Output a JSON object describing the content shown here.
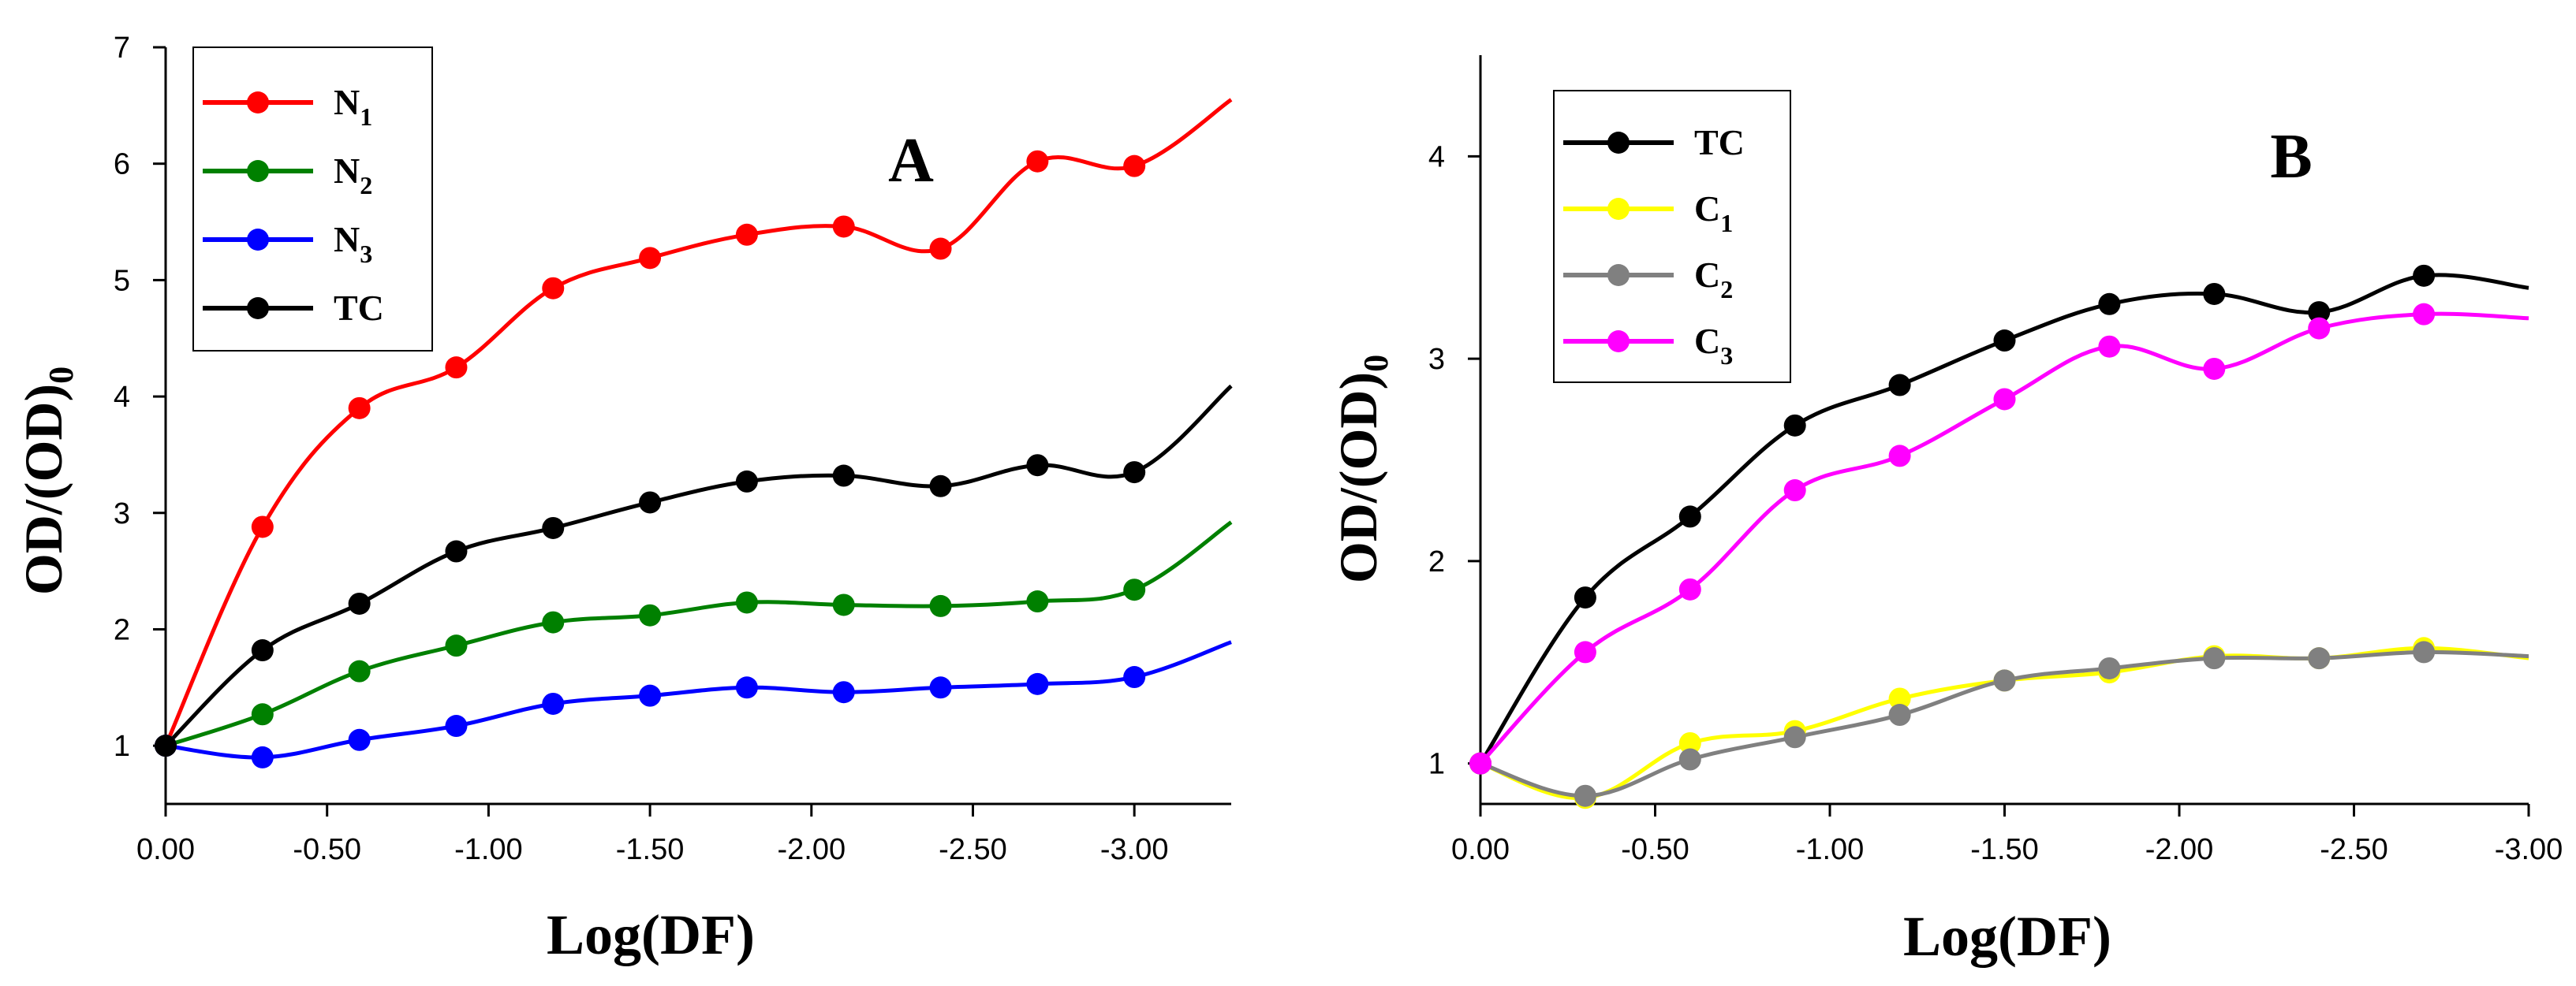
{
  "chart_data": [
    {
      "type": "line",
      "panel": "A",
      "title": "",
      "xlabel": "Log(DF)",
      "ylabel": "OD/(OD)",
      "ylabel_sub": "0",
      "xlim": [
        0,
        -3.3
      ],
      "ylim": [
        0.5,
        7
      ],
      "x_ticks": [
        0,
        -0.5,
        -1,
        -1.5,
        -2,
        -2.5,
        -3
      ],
      "x_tick_labels": [
        "0.00",
        "-0.50",
        "-1.00",
        "-1.50",
        "-2.00",
        "-2.50",
        "-3.00"
      ],
      "y_ticks": [
        1,
        2,
        3,
        4,
        5,
        6,
        7
      ],
      "y_tick_labels": [
        "1",
        "2",
        "3",
        "4",
        "5",
        "6",
        "7"
      ],
      "legend_position": "top-left",
      "x": [
        0,
        -0.3,
        -0.6,
        -0.9,
        -1.2,
        -1.5,
        -1.8,
        -2.1,
        -2.4,
        -2.7,
        -3.0,
        -3.3
      ],
      "series": [
        {
          "name": "N",
          "sub": "1",
          "color": "#ff0000",
          "values": [
            1.0,
            2.88,
            3.9,
            4.25,
            4.93,
            5.19,
            5.39,
            5.46,
            5.27,
            6.02,
            5.98,
            6.55
          ],
          "markers": 11
        },
        {
          "name": "N",
          "sub": "2",
          "color": "#008000",
          "values": [
            1.0,
            1.27,
            1.64,
            1.86,
            2.06,
            2.12,
            2.23,
            2.21,
            2.2,
            2.24,
            2.34,
            2.92
          ],
          "markers": 11
        },
        {
          "name": "N",
          "sub": "3",
          "color": "#0000ff",
          "values": [
            1.0,
            0.9,
            1.05,
            1.17,
            1.36,
            1.43,
            1.5,
            1.46,
            1.5,
            1.53,
            1.59,
            1.89
          ],
          "markers": 11
        },
        {
          "name": "TC",
          "sub": "",
          "color": "#000000",
          "values": [
            1.0,
            1.82,
            2.22,
            2.67,
            2.87,
            3.09,
            3.27,
            3.32,
            3.23,
            3.41,
            3.35,
            4.09
          ],
          "markers": 11
        }
      ]
    },
    {
      "type": "line",
      "panel": "B",
      "title": "",
      "xlabel": "Log(DF)",
      "ylabel": "OD/(OD)",
      "ylabel_sub": "0",
      "xlim": [
        0,
        -3.0
      ],
      "ylim": [
        0.8,
        4.5
      ],
      "x_ticks": [
        0,
        -0.5,
        -1,
        -1.5,
        -2,
        -2.5,
        -3
      ],
      "x_tick_labels": [
        "0.00",
        "-0.50",
        "-1.00",
        "-1.50",
        "-2.00",
        "-2.50",
        "-3.00"
      ],
      "y_ticks": [
        1,
        2,
        3,
        4
      ],
      "y_tick_labels": [
        "1",
        "2",
        "3",
        "4"
      ],
      "legend_position": "top-left",
      "x": [
        0,
        -0.3,
        -0.6,
        -0.9,
        -1.2,
        -1.5,
        -1.8,
        -2.1,
        -2.4,
        -2.7,
        -3.0
      ],
      "series": [
        {
          "name": "TC",
          "sub": "",
          "color": "#000000",
          "values": [
            1.0,
            1.82,
            2.22,
            2.67,
            2.87,
            3.09,
            3.27,
            3.32,
            3.23,
            3.41,
            3.35
          ],
          "markers": 10
        },
        {
          "name": "C",
          "sub": "1",
          "color": "#ffff00",
          "values": [
            1.0,
            0.83,
            1.1,
            1.16,
            1.32,
            1.41,
            1.45,
            1.53,
            1.52,
            1.57,
            1.52
          ],
          "markers": 10
        },
        {
          "name": "C",
          "sub": "2",
          "color": "#808080",
          "values": [
            1.0,
            0.84,
            1.02,
            1.13,
            1.24,
            1.41,
            1.47,
            1.52,
            1.52,
            1.55,
            1.53
          ],
          "markers": 10
        },
        {
          "name": "C",
          "sub": "3",
          "color": "#ff00ff",
          "values": [
            1.0,
            1.55,
            1.86,
            2.35,
            2.52,
            2.8,
            3.06,
            2.95,
            3.15,
            3.22,
            3.2
          ],
          "markers": 10
        }
      ]
    }
  ]
}
